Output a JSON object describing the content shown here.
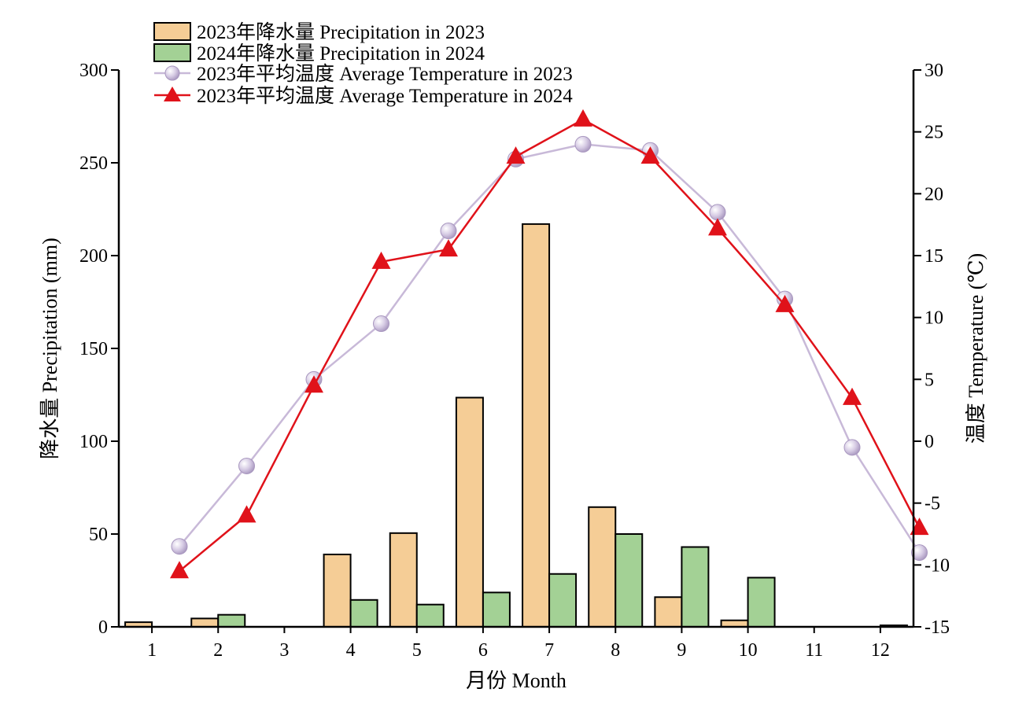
{
  "chart_data": {
    "type": "bar+line",
    "categories": [
      "1",
      "2",
      "3",
      "4",
      "5",
      "6",
      "7",
      "8",
      "9",
      "10",
      "11",
      "12"
    ],
    "xlabel": "月份 Month",
    "ylabel_left": "降水量 Precipitation (mm)",
    "ylabel_right": "温度 Temperature (℃)",
    "ylim_left": [
      0,
      300
    ],
    "yticks_left": [
      "0",
      "50",
      "100",
      "150",
      "200",
      "250",
      "300"
    ],
    "ylim_right": [
      -15,
      30
    ],
    "yticks_right": [
      "-15",
      "-10",
      "-5",
      "0",
      "5",
      "10",
      "15",
      "20",
      "25",
      "30"
    ],
    "grid": false,
    "legend_position": "top-left",
    "bar_series": [
      {
        "name": "2023年降水量 Precipitation in 2023",
        "color": "#F5CD96",
        "values": [
          2.5,
          4.5,
          0,
          39,
          50.5,
          123.5,
          217,
          64.5,
          16,
          3.5,
          0,
          0
        ]
      },
      {
        "name": "2024年降水量 Precipitation in 2024",
        "color": "#A3D195",
        "values": [
          0,
          6.5,
          0,
          14.5,
          12,
          18.5,
          28.5,
          50,
          43,
          26.5,
          0,
          0.8
        ]
      }
    ],
    "line_series": [
      {
        "name": "2023年平均温度 Average Temperature in 2023",
        "color": "#C8B9D8",
        "marker": "circle",
        "values": [
          -8.5,
          -2,
          5,
          9.5,
          17,
          22.8,
          24,
          23.5,
          18.5,
          11.5,
          -0.5,
          -9
        ]
      },
      {
        "name": "2023年平均温度 Average Temperature in 2024",
        "color": "#E0121A",
        "marker": "triangle",
        "values": [
          -10.5,
          -6,
          4.5,
          14.5,
          15.5,
          23,
          26,
          23,
          17.2,
          11,
          3.5,
          -7
        ]
      }
    ]
  }
}
